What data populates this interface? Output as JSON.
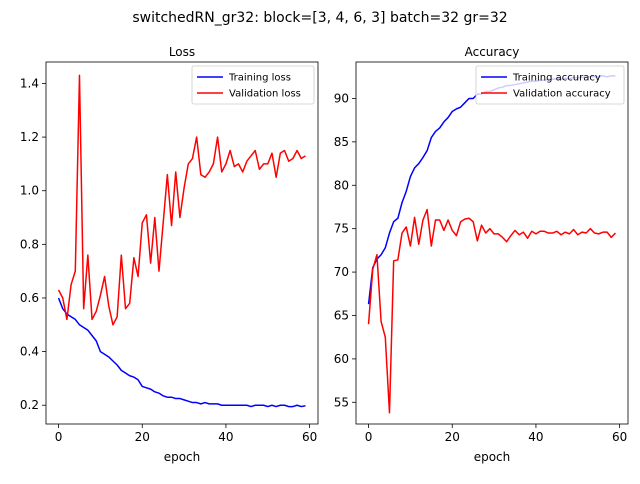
{
  "figure": {
    "suptitle": "switchedRN_gr32: block=[3, 4, 6, 3] batch=32 gr=32"
  },
  "chart_data": [
    {
      "type": "line",
      "title": "Loss",
      "xlabel": "epoch",
      "ylabel": "",
      "xlim": [
        -3,
        62
      ],
      "ylim": [
        0.13,
        1.48
      ],
      "xticks": [
        0,
        20,
        40,
        60
      ],
      "yticks": [
        0.2,
        0.4,
        0.6,
        0.8,
        1.0,
        1.2,
        1.4
      ],
      "ytick_labels": [
        "0.2",
        "0.4",
        "0.6",
        "0.8",
        "1.0",
        "1.2",
        "1.4"
      ],
      "legend_position": "top-right",
      "grid": false,
      "x": [
        0,
        1,
        2,
        3,
        4,
        5,
        6,
        7,
        8,
        9,
        10,
        11,
        12,
        13,
        14,
        15,
        16,
        17,
        18,
        19,
        20,
        21,
        22,
        23,
        24,
        25,
        26,
        27,
        28,
        29,
        30,
        31,
        32,
        33,
        34,
        35,
        36,
        37,
        38,
        39,
        40,
        41,
        42,
        43,
        44,
        45,
        46,
        47,
        48,
        49,
        50,
        51,
        52,
        53,
        54,
        55,
        56,
        57,
        58,
        59
      ],
      "series": [
        {
          "name": "Training loss",
          "color": "#0000ff",
          "values": [
            0.6,
            0.56,
            0.54,
            0.53,
            0.52,
            0.5,
            0.49,
            0.48,
            0.46,
            0.44,
            0.4,
            0.39,
            0.38,
            0.365,
            0.35,
            0.33,
            0.32,
            0.31,
            0.305,
            0.295,
            0.27,
            0.265,
            0.26,
            0.25,
            0.245,
            0.235,
            0.23,
            0.23,
            0.225,
            0.225,
            0.22,
            0.215,
            0.21,
            0.21,
            0.205,
            0.21,
            0.205,
            0.205,
            0.205,
            0.2,
            0.2,
            0.2,
            0.2,
            0.2,
            0.2,
            0.2,
            0.195,
            0.2,
            0.2,
            0.2,
            0.195,
            0.2,
            0.195,
            0.2,
            0.2,
            0.195,
            0.195,
            0.2,
            0.195,
            0.198
          ]
        },
        {
          "name": "Validation loss",
          "color": "#ff0000",
          "values": [
            0.63,
            0.6,
            0.52,
            0.65,
            0.7,
            1.43,
            0.56,
            0.76,
            0.52,
            0.55,
            0.61,
            0.68,
            0.57,
            0.5,
            0.53,
            0.76,
            0.56,
            0.58,
            0.75,
            0.68,
            0.88,
            0.91,
            0.73,
            0.9,
            0.7,
            0.88,
            1.06,
            0.87,
            1.07,
            0.9,
            1.01,
            1.1,
            1.12,
            1.2,
            1.06,
            1.05,
            1.07,
            1.1,
            1.2,
            1.07,
            1.1,
            1.15,
            1.09,
            1.1,
            1.07,
            1.11,
            1.13,
            1.15,
            1.08,
            1.1,
            1.1,
            1.14,
            1.05,
            1.14,
            1.15,
            1.11,
            1.12,
            1.15,
            1.12,
            1.13
          ]
        }
      ]
    },
    {
      "type": "line",
      "title": "Accuracy",
      "xlabel": "epoch",
      "ylabel": "",
      "xlim": [
        -3,
        62
      ],
      "ylim": [
        52.5,
        94.2
      ],
      "xticks": [
        0,
        20,
        40,
        60
      ],
      "yticks": [
        55,
        60,
        65,
        70,
        75,
        80,
        85,
        90
      ],
      "ytick_labels": [
        "55",
        "60",
        "65",
        "70",
        "75",
        "80",
        "85",
        "90"
      ],
      "legend_position": "top-right",
      "grid": false,
      "x": [
        0,
        1,
        2,
        3,
        4,
        5,
        6,
        7,
        8,
        9,
        10,
        11,
        12,
        13,
        14,
        15,
        16,
        17,
        18,
        19,
        20,
        21,
        22,
        23,
        24,
        25,
        26,
        27,
        28,
        29,
        30,
        31,
        32,
        33,
        34,
        35,
        36,
        37,
        38,
        39,
        40,
        41,
        42,
        43,
        44,
        45,
        46,
        47,
        48,
        49,
        50,
        51,
        52,
        53,
        54,
        55,
        56,
        57,
        58,
        59
      ],
      "series": [
        {
          "name": "Training accuracy",
          "color": "#0000ff",
          "values": [
            66.3,
            70.5,
            71.5,
            72.0,
            72.8,
            74.5,
            75.8,
            76.2,
            78.0,
            79.3,
            81.0,
            82.0,
            82.5,
            83.2,
            84.0,
            85.5,
            86.2,
            86.6,
            87.3,
            87.8,
            88.5,
            88.8,
            89.0,
            89.5,
            90.0,
            90.0,
            90.5,
            90.5,
            90.8,
            90.8,
            91.0,
            91.2,
            91.3,
            91.5,
            91.5,
            91.6,
            91.7,
            91.8,
            91.9,
            92.0,
            92.0,
            92.1,
            92.1,
            92.2,
            92.2,
            92.3,
            92.2,
            92.3,
            92.3,
            92.4,
            92.4,
            92.4,
            92.5,
            92.5,
            92.5,
            92.5,
            92.6,
            92.5,
            92.6,
            92.6
          ]
        },
        {
          "name": "Validation accuracy",
          "color": "#ff0000",
          "values": [
            64.0,
            70.3,
            72.0,
            64.3,
            62.5,
            53.8,
            71.3,
            71.4,
            74.5,
            75.2,
            73.0,
            76.3,
            73.2,
            76.0,
            77.2,
            73.0,
            76.0,
            76.0,
            74.8,
            76.0,
            74.8,
            74.2,
            75.8,
            76.1,
            76.2,
            75.8,
            73.6,
            75.4,
            74.5,
            75.0,
            74.4,
            74.4,
            74.0,
            73.5,
            74.2,
            74.8,
            74.3,
            74.6,
            73.9,
            74.7,
            74.4,
            74.7,
            74.7,
            74.5,
            74.5,
            74.7,
            74.3,
            74.6,
            74.4,
            74.9,
            74.3,
            74.6,
            74.5,
            75.0,
            74.5,
            74.4,
            74.6,
            74.6,
            74.0,
            74.5
          ]
        }
      ]
    }
  ]
}
